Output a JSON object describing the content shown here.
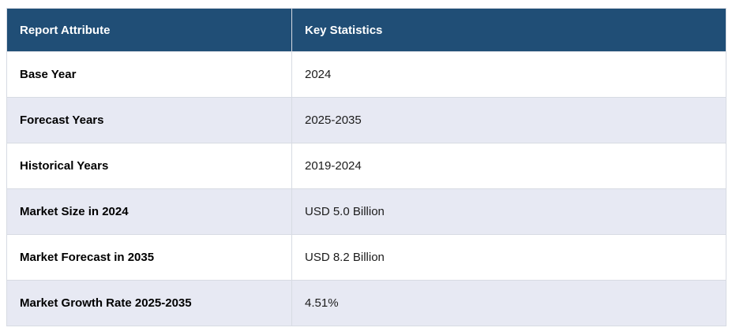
{
  "page": {
    "background": "#FFFFFF"
  },
  "table": {
    "columns": [
      {
        "label": "Report Attribute"
      },
      {
        "label": "Key Statistics"
      }
    ],
    "rows": [
      {
        "attribute": "Base Year",
        "value": "2024"
      },
      {
        "attribute": "Forecast Years",
        "value": "2025-2035"
      },
      {
        "attribute": "Historical Years",
        "value": "2019-2024"
      },
      {
        "attribute": "Market Size in 2024",
        "value": "USD 5.0 Billion"
      },
      {
        "attribute": "Market Forecast in 2035",
        "value": "USD 8.2 Billion"
      },
      {
        "attribute": "Market Growth Rate 2025-2035",
        "value": "4.51%"
      }
    ],
    "colors": {
      "header_bg": "#204E76",
      "header_text": "#FFFFFF",
      "row_bg": "#FFFFFF",
      "row_alt_bg": "#E7E9F3",
      "border": "#D7DBE3",
      "attribute_text": "#000000",
      "value_text": "#1B1B1B"
    }
  }
}
